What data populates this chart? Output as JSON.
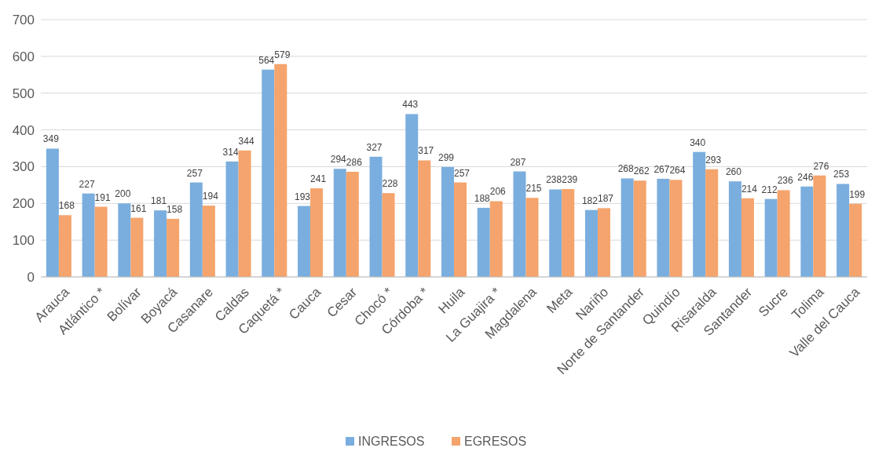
{
  "chart_data": {
    "type": "bar",
    "categories": [
      "Arauca",
      "Atlántico *",
      "Bolívar",
      "Boyacá",
      "Casanare",
      "Caldas",
      "Caquetá *",
      "Cauca",
      "Cesar",
      "Chocó *",
      "Córdoba *",
      "Huila",
      "La Guajira *",
      "Magdalena",
      "Meta",
      "Nariño",
      "Norte de Santander",
      "Quindío",
      "Risaralda",
      "Santander",
      "Sucre",
      "Tolima",
      "Valle del Cauca"
    ],
    "series": [
      {
        "name": "INGRESOS",
        "color": "#7aaede",
        "values": [
          349,
          227,
          200,
          181,
          257,
          314,
          564,
          193,
          294,
          327,
          443,
          299,
          188,
          287,
          238,
          182,
          268,
          267,
          340,
          260,
          212,
          246,
          253
        ]
      },
      {
        "name": "EGRESOS",
        "color": "#f4a46c",
        "values": [
          168,
          191,
          161,
          158,
          194,
          344,
          579,
          241,
          286,
          228,
          317,
          257,
          206,
          215,
          239,
          187,
          262,
          264,
          293,
          214,
          236,
          276,
          199
        ]
      }
    ],
    "ylim": [
      0,
      700
    ],
    "yticks": [
      0,
      100,
      200,
      300,
      400,
      500,
      600,
      700
    ],
    "grid": "y",
    "legend": "bottom",
    "data_labels": true
  }
}
